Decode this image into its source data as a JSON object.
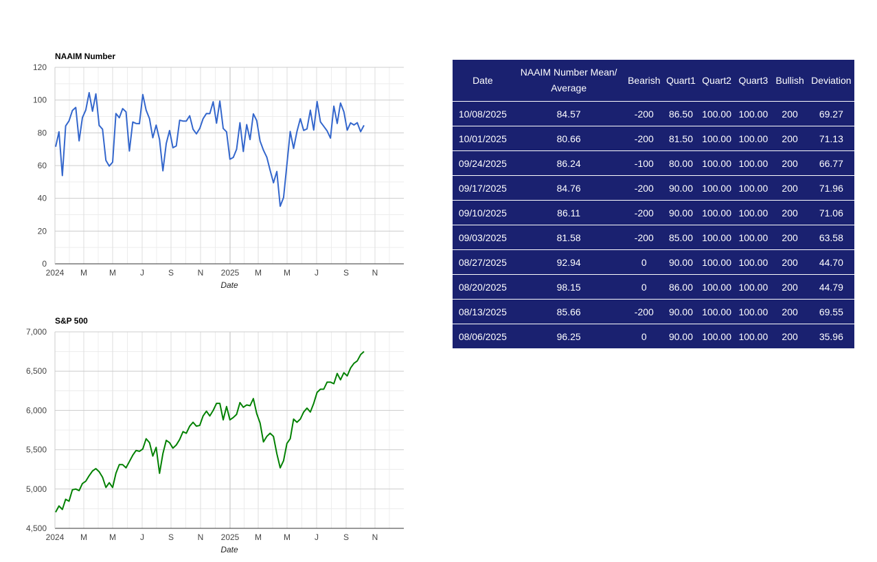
{
  "chart_data": [
    {
      "type": "line",
      "title": "NAAIM Number",
      "xlabel": "Date",
      "ylabel": "",
      "ylim": [
        0,
        120
      ],
      "y_ticks": [
        "0",
        "20",
        "40",
        "60",
        "80",
        "100",
        "120"
      ],
      "x_ticks": [
        "2024",
        "M",
        "M",
        "J",
        "S",
        "N",
        "2025",
        "M",
        "M",
        "J",
        "S",
        "N"
      ],
      "grid": true,
      "color": "#3366cc",
      "series": [
        {
          "values": [
            71.5,
            80.6,
            53.9,
            84.2,
            87.3,
            93.6,
            95.5,
            75.1,
            89.3,
            93.9,
            104.5,
            93.2,
            103.8,
            84.5,
            82.2,
            63.2,
            59.7,
            62.1,
            91.8,
            89.2,
            94.8,
            92.8,
            68.9,
            86.6,
            85.7,
            85.6,
            103.4,
            93.8,
            88.6,
            77.0,
            84.7,
            75.9,
            56.8,
            73.5,
            81.4,
            70.9,
            72.0,
            87.7,
            87.2,
            87.2,
            90.4,
            82.2,
            79.4,
            82.7,
            88.6,
            91.8,
            91.7,
            99.0,
            85.9,
            99.4,
            82.7,
            80.6,
            63.9,
            65.0,
            70.0,
            86.2,
            68.6,
            85.0,
            75.9,
            91.6,
            87.5,
            75.0,
            69.4,
            65.1,
            57.2,
            49.5,
            56.4,
            35.2,
            40.5,
            60.8,
            80.8,
            70.5,
            80.8,
            88.6,
            81.5,
            82.4,
            93.8,
            81.7,
            99.1,
            86.7,
            84.0,
            81.2,
            76.8,
            96.3,
            85.7,
            98.2,
            92.9,
            81.6,
            86.1,
            84.8,
            86.2,
            80.7,
            84.6
          ]
        }
      ]
    },
    {
      "type": "line",
      "title": "S&P 500",
      "xlabel": "Date",
      "ylabel": "",
      "ylim": [
        4500,
        7000
      ],
      "y_ticks": [
        "4,500",
        "5,000",
        "5,500",
        "6,000",
        "6,500",
        "7,000"
      ],
      "x_ticks": [
        "2024",
        "M",
        "M",
        "J",
        "S",
        "N",
        "2025",
        "M",
        "M",
        "J",
        "S",
        "N"
      ],
      "grid": true,
      "color": "#008000",
      "series": [
        {
          "values": [
            4705,
            4785,
            4740,
            4870,
            4845,
            4990,
            5000,
            4980,
            5070,
            5100,
            5170,
            5230,
            5260,
            5220,
            5150,
            5020,
            5080,
            5020,
            5200,
            5310,
            5310,
            5270,
            5350,
            5430,
            5490,
            5480,
            5510,
            5640,
            5590,
            5420,
            5530,
            5200,
            5450,
            5620,
            5590,
            5520,
            5560,
            5630,
            5730,
            5710,
            5800,
            5850,
            5800,
            5810,
            5930,
            5990,
            5930,
            6000,
            6090,
            6090,
            5880,
            6050,
            5880,
            5910,
            5950,
            6100,
            6040,
            6070,
            6060,
            6150,
            5960,
            5840,
            5600,
            5670,
            5710,
            5670,
            5450,
            5270,
            5360,
            5580,
            5640,
            5890,
            5850,
            5890,
            5980,
            6030,
            5980,
            6090,
            6230,
            6270,
            6270,
            6360,
            6360,
            6340,
            6470,
            6390,
            6480,
            6440,
            6540,
            6600,
            6630,
            6710,
            6750
          ]
        }
      ]
    }
  ],
  "table": {
    "headers": [
      "Date",
      "NAAIM Number Mean/ Average",
      "Bearish",
      "Quart1",
      "Quart2",
      "Quart3",
      "Bullish",
      "Deviation"
    ],
    "rows": [
      [
        "10/08/2025",
        "84.57",
        "-200",
        "86.50",
        "100.00",
        "100.00",
        "200",
        "69.27"
      ],
      [
        "10/01/2025",
        "80.66",
        "-200",
        "81.50",
        "100.00",
        "100.00",
        "200",
        "71.13"
      ],
      [
        "09/24/2025",
        "86.24",
        "-100",
        "80.00",
        "100.00",
        "100.00",
        "200",
        "66.77"
      ],
      [
        "09/17/2025",
        "84.76",
        "-200",
        "90.00",
        "100.00",
        "100.00",
        "200",
        "71.96"
      ],
      [
        "09/10/2025",
        "86.11",
        "-200",
        "90.00",
        "100.00",
        "100.00",
        "200",
        "71.06"
      ],
      [
        "09/03/2025",
        "81.58",
        "-200",
        "85.00",
        "100.00",
        "100.00",
        "200",
        "63.58"
      ],
      [
        "08/27/2025",
        "92.94",
        "0",
        "90.00",
        "100.00",
        "100.00",
        "200",
        "44.70"
      ],
      [
        "08/20/2025",
        "98.15",
        "0",
        "86.00",
        "100.00",
        "100.00",
        "200",
        "44.79"
      ],
      [
        "08/13/2025",
        "85.66",
        "-200",
        "90.00",
        "100.00",
        "100.00",
        "200",
        "69.55"
      ],
      [
        "08/06/2025",
        "96.25",
        "0",
        "90.00",
        "100.00",
        "100.00",
        "200",
        "35.96"
      ]
    ]
  }
}
